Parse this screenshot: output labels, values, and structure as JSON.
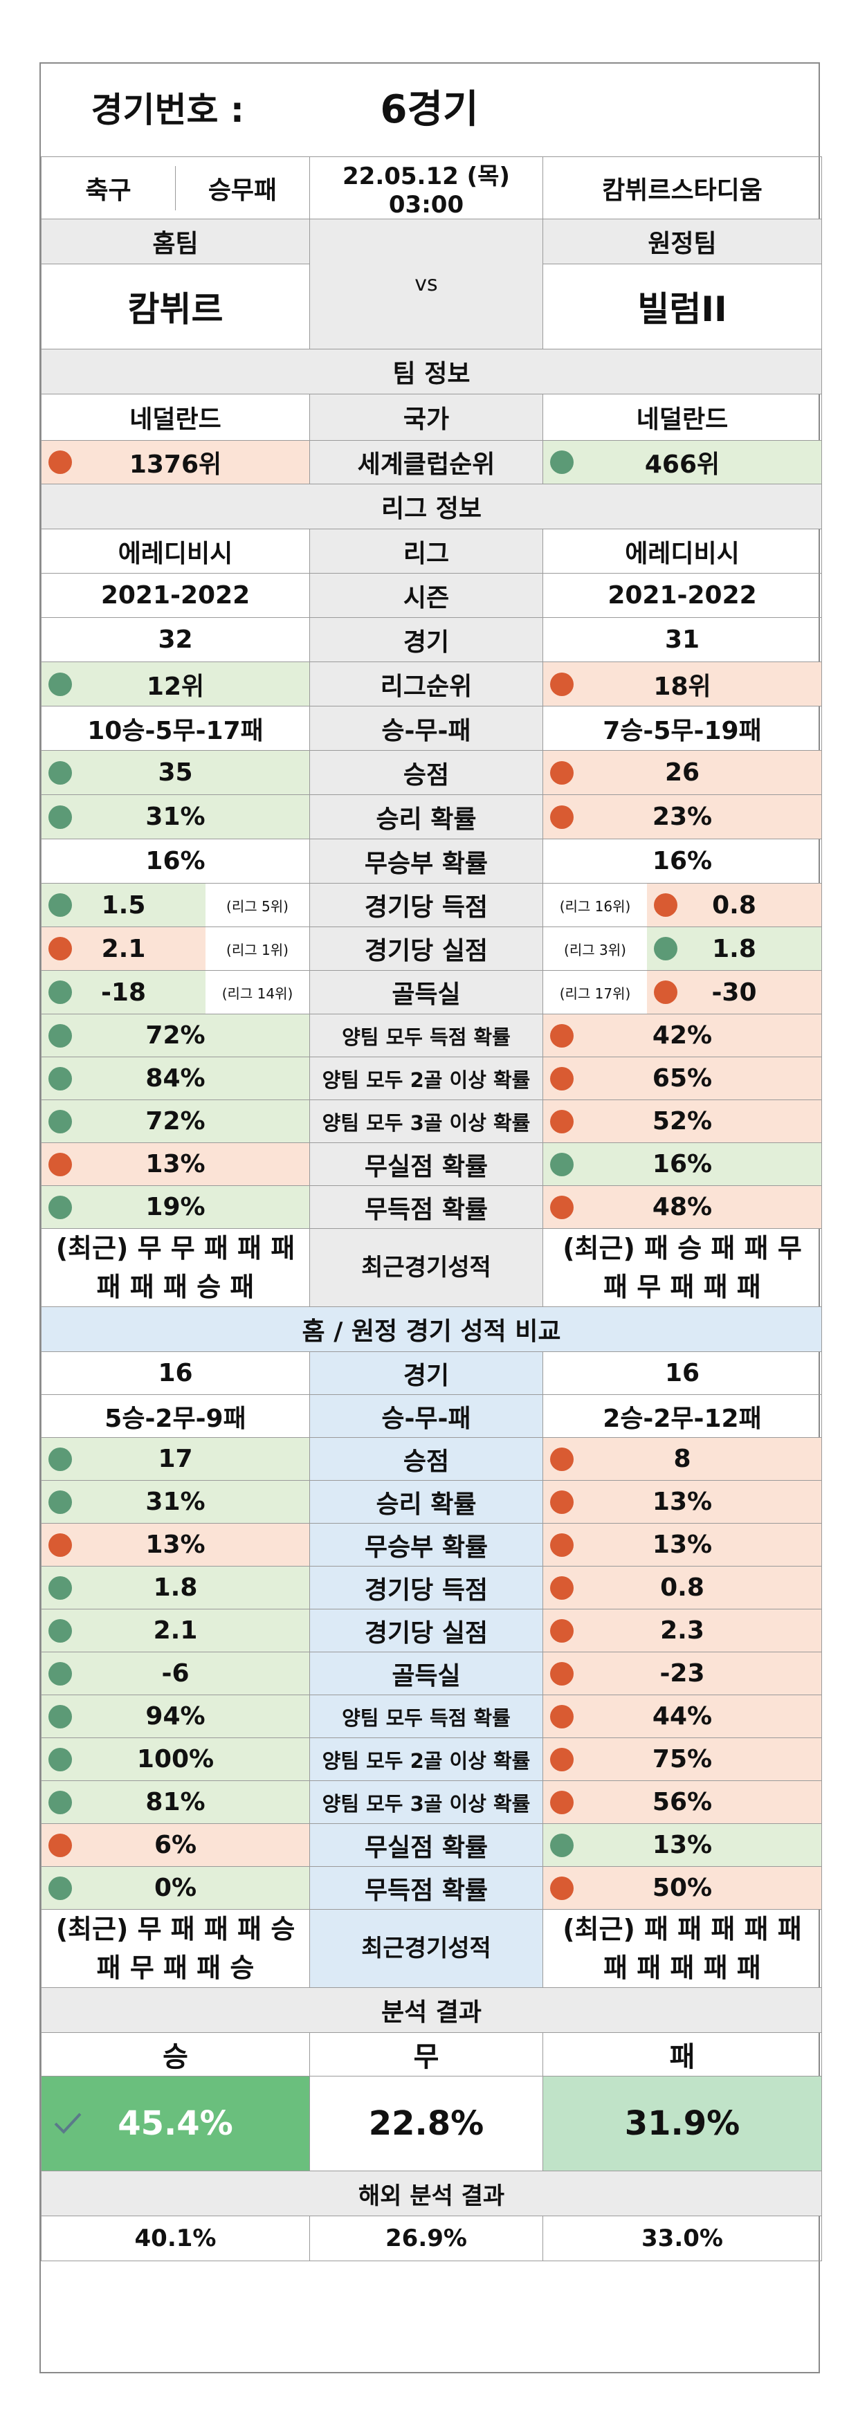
{
  "header": {
    "game_label": "경기번호 :",
    "game_value": "6경기",
    "sport": "축구",
    "bet_type": "승무패",
    "datetime": "22.05.12 (목) 03:00",
    "stadium": "캄뷔르스타디움",
    "home_label": "홈팀",
    "away_label": "원정팀",
    "vs": "vs",
    "home_team": "캄뷔르",
    "away_team": "빌럼II"
  },
  "team_info": {
    "title": "팀 정보",
    "country_label": "국가",
    "home_country": "네덜란드",
    "away_country": "네덜란드",
    "club_rank_label": "세계클럽순위",
    "home_club_rank": "1376위",
    "away_club_rank": "466위"
  },
  "league_info": {
    "title": "리그 정보",
    "rows": [
      {
        "label": "리그",
        "home": "에레디비시",
        "away": "에레디비시"
      },
      {
        "label": "시즌",
        "home": "2021-2022",
        "away": "2021-2022"
      },
      {
        "label": "경기",
        "home": "32",
        "away": "31"
      },
      {
        "label": "리그순위",
        "home": "12위",
        "away": "18위",
        "home_dot": "green",
        "away_dot": "red"
      },
      {
        "label": "승-무-패",
        "home": "10승-5무-17패",
        "away": "7승-5무-19패"
      },
      {
        "label": "승점",
        "home": "35",
        "away": "26",
        "home_dot": "green",
        "away_dot": "red"
      },
      {
        "label": "승리 확률",
        "home": "31%",
        "away": "23%",
        "home_dot": "green",
        "away_dot": "red"
      },
      {
        "label": "무승부 확률",
        "home": "16%",
        "away": "16%"
      }
    ],
    "rank_rows": [
      {
        "label": "경기당 득점",
        "home": "1.5",
        "home_rank": "(리그 5위)",
        "away": "0.8",
        "away_rank": "(리그 16위)",
        "home_dot": "green",
        "away_dot": "red"
      },
      {
        "label": "경기당 실점",
        "home": "2.1",
        "home_rank": "(리그 1위)",
        "away": "1.8",
        "away_rank": "(리그 3위)",
        "home_dot": "red",
        "away_dot": "green"
      },
      {
        "label": "골득실",
        "home": "-18",
        "home_rank": "(리그 14위)",
        "away": "-30",
        "away_rank": "(리그 17위)",
        "home_dot": "green",
        "away_dot": "red"
      }
    ],
    "prob_rows": [
      {
        "label": "양팀 모두 득점 확률",
        "home": "72%",
        "away": "42%",
        "home_dot": "green",
        "away_dot": "red"
      },
      {
        "label": "양팀 모두 2골 이상 확률",
        "home": "84%",
        "away": "65%",
        "home_dot": "green",
        "away_dot": "red"
      },
      {
        "label": "양팀 모두 3골 이상 확률",
        "home": "72%",
        "away": "52%",
        "home_dot": "green",
        "away_dot": "red"
      },
      {
        "label": "무실점 확률",
        "home": "13%",
        "away": "16%",
        "home_dot": "red",
        "away_dot": "green"
      },
      {
        "label": "무득점 확률",
        "home": "19%",
        "away": "48%",
        "home_dot": "green",
        "away_dot": "red"
      }
    ],
    "recent_label": "최근경기성적",
    "home_recent_1": "(최근) 무 무 패 패 패",
    "home_recent_2": "패 패 패 승 패",
    "away_recent_1": "(최근) 패 승 패 패 무",
    "away_recent_2": "패 무 패 패 패"
  },
  "home_away": {
    "title": "홈 / 원정 경기 성적 비교",
    "rows": [
      {
        "label": "경기",
        "home": "16",
        "away": "16"
      },
      {
        "label": "승-무-패",
        "home": "5승-2무-9패",
        "away": "2승-2무-12패"
      },
      {
        "label": "승점",
        "home": "17",
        "away": "8",
        "home_dot": "green",
        "away_dot": "red"
      },
      {
        "label": "승리 확률",
        "home": "31%",
        "away": "13%",
        "home_dot": "green",
        "away_dot": "red"
      },
      {
        "label": "무승부 확률",
        "home": "13%",
        "away": "13%",
        "home_dot": "red",
        "away_dot": "red"
      },
      {
        "label": "경기당 득점",
        "home": "1.8",
        "away": "0.8",
        "home_dot": "green",
        "away_dot": "red"
      },
      {
        "label": "경기당 실점",
        "home": "2.1",
        "away": "2.3",
        "home_dot": "green",
        "away_dot": "red"
      },
      {
        "label": "골득실",
        "home": "-6",
        "away": "-23",
        "home_dot": "green",
        "away_dot": "red"
      },
      {
        "label": "양팀 모두 득점 확률",
        "home": "94%",
        "away": "44%",
        "home_dot": "green",
        "away_dot": "red"
      },
      {
        "label": "양팀 모두 2골 이상 확률",
        "home": "100%",
        "away": "75%",
        "home_dot": "green",
        "away_dot": "red"
      },
      {
        "label": "양팀 모두 3골 이상 확률",
        "home": "81%",
        "away": "56%",
        "home_dot": "green",
        "away_dot": "red"
      },
      {
        "label": "무실점 확률",
        "home": "6%",
        "away": "13%",
        "home_dot": "red",
        "away_dot": "green"
      },
      {
        "label": "무득점 확률",
        "home": "0%",
        "away": "50%",
        "home_dot": "green",
        "away_dot": "red"
      }
    ],
    "recent_label": "최근경기성적",
    "home_recent_1": "(최근) 무 패 패 패 승",
    "home_recent_2": "패 무 패 패 승",
    "away_recent_1": "(최근) 패 패 패 패 패",
    "away_recent_2": "패 패 패 패 패"
  },
  "analysis": {
    "title": "분석 결과",
    "win_label": "승",
    "draw_label": "무",
    "lose_label": "패",
    "win": "45.4%",
    "draw": "22.8%",
    "lose": "31.9%",
    "overseas_title": "해외 분석 결과",
    "overseas_win": "40.1%",
    "overseas_draw": "26.9%",
    "overseas_lose": "33.0%"
  },
  "colors": {
    "green_dot": "#5c9a76",
    "red_dot": "#d95b32",
    "green_bg": "#e2efd9",
    "red_bg": "#fbe3d6",
    "blue_bg": "#dceaf6",
    "win_bg": "#6abf7d"
  }
}
